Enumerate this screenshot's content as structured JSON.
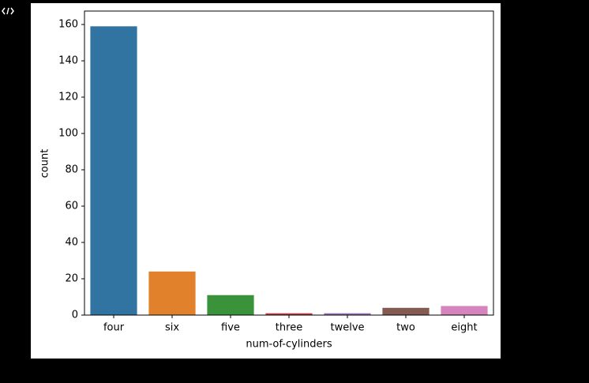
{
  "chart_data": {
    "type": "bar",
    "x_label": "num-of-cylinders",
    "y_label": "count",
    "categories": [
      "four",
      "six",
      "five",
      "three",
      "twelve",
      "two",
      "eight"
    ],
    "values": [
      159,
      24,
      11,
      1,
      1,
      4,
      5
    ],
    "colors": [
      "#3274a1",
      "#e1812c",
      "#3a923a",
      "#c03d3e",
      "#9372b2",
      "#845b53",
      "#d684bd"
    ],
    "ylim": [
      0,
      167.4
    ],
    "yticks": [
      0,
      20,
      40,
      60,
      80,
      100,
      120,
      140,
      160
    ],
    "grid": false
  }
}
